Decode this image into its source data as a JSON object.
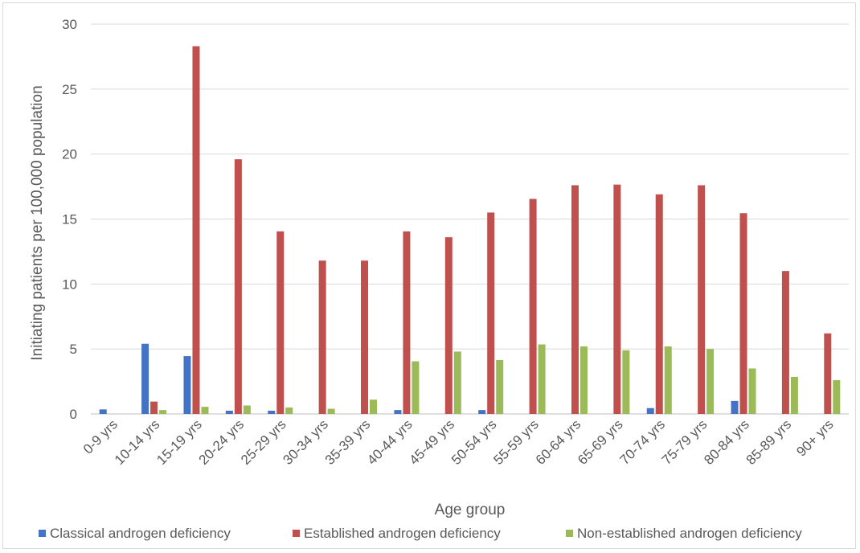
{
  "chart_data": {
    "type": "bar",
    "title": "",
    "xlabel": "Age group",
    "ylabel": "Initiating patients per 100,000 population",
    "ylim": [
      0,
      30
    ],
    "yticks": [
      0,
      5,
      10,
      15,
      20,
      25,
      30
    ],
    "grid": true,
    "legend_position": "bottom",
    "categories": [
      "0-9 yrs",
      "10-14 yrs",
      "15-19 yrs",
      "20-24 yrs",
      "25-29 yrs",
      "30-34 yrs",
      "35-39 yrs",
      "40-44 yrs",
      "45-49 yrs",
      "50-54 yrs",
      "55-59 yrs",
      "60-64 yrs",
      "65-69 yrs",
      "70-74 yrs",
      "75-79 yrs",
      "80-84 yrs",
      "85-89 yrs",
      "90+ yrs"
    ],
    "series": [
      {
        "name": "Classical androgen deficiency",
        "color": "#4472c4",
        "values": [
          0.35,
          5.4,
          4.45,
          0.25,
          0.25,
          0,
          0,
          0.3,
          0,
          0.3,
          0,
          0,
          0,
          0.45,
          0,
          1.0,
          0,
          0
        ]
      },
      {
        "name": "Established androgen deficiency",
        "color": "#c0504d",
        "values": [
          0,
          0.95,
          28.3,
          19.6,
          14.05,
          11.8,
          11.8,
          14.05,
          13.6,
          15.5,
          16.55,
          17.6,
          17.65,
          16.9,
          17.6,
          15.45,
          11.0,
          6.2
        ]
      },
      {
        "name": "Non-established androgen deficiency",
        "color": "#9bbb59",
        "values": [
          0,
          0.3,
          0.55,
          0.65,
          0.5,
          0.4,
          1.1,
          4.05,
          4.8,
          4.15,
          5.35,
          5.2,
          4.9,
          5.2,
          5.0,
          3.5,
          2.85,
          2.6
        ]
      }
    ]
  }
}
